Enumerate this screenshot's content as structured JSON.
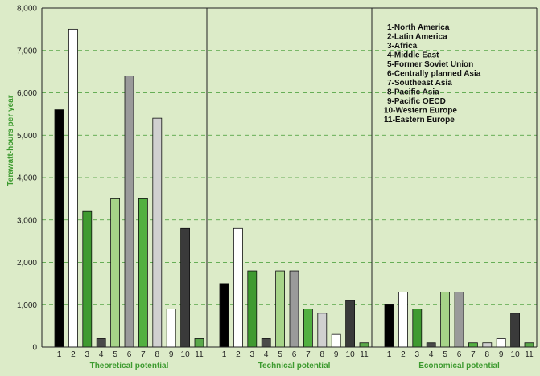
{
  "chart_data": {
    "type": "bar",
    "ylabel": "Terawatt-hours per year",
    "ylim": [
      0,
      8000
    ],
    "yticks": [
      "0",
      "1,000",
      "2,000",
      "3,000",
      "4,000",
      "5,000",
      "6,000",
      "7,000",
      "8,000"
    ],
    "ytick_values": [
      0,
      1000,
      2000,
      3000,
      4000,
      5000,
      6000,
      7000,
      8000
    ],
    "grid": "horizontal dashed",
    "legend_position": "top-right",
    "categories": [
      "1",
      "2",
      "3",
      "4",
      "5",
      "6",
      "7",
      "8",
      "9",
      "10",
      "11"
    ],
    "legend": [
      "1-North America",
      "2-Latin America",
      "3-Africa",
      "4-Middle East",
      "5-Former Soviet Union",
      "6-Centrally planned Asia",
      "7-Southeast Asia",
      "8-Pacific Asia",
      "9-Pacific OECD",
      "10-Western Europe",
      "11-Eastern Europe"
    ],
    "bar_colors": [
      "#000000",
      "#ffffff",
      "#3f9a30",
      "#4a4a4a",
      "#a6d488",
      "#9a9a9a",
      "#52b040",
      "#d0d0d0",
      "#ffffff",
      "#3a3a3a",
      "#5aa84a"
    ],
    "panels": [
      {
        "label": "Theoretical potential",
        "values": [
          5600,
          7500,
          3200,
          200,
          3500,
          6400,
          3500,
          5400,
          900,
          2800,
          200
        ]
      },
      {
        "label": "Technical potential",
        "values": [
          1500,
          2800,
          1800,
          200,
          1800,
          1800,
          900,
          800,
          300,
          1100,
          100
        ]
      },
      {
        "label": "Economical potential",
        "values": [
          1000,
          1300,
          900,
          100,
          1300,
          1300,
          100,
          100,
          200,
          800,
          100
        ]
      }
    ]
  }
}
